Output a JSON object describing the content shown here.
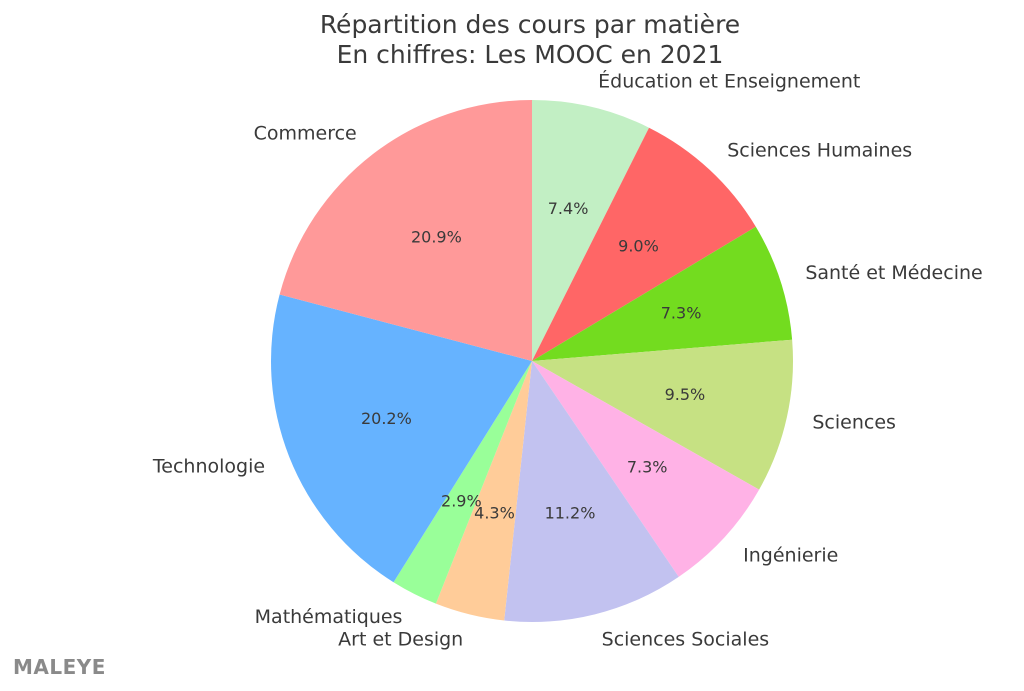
{
  "chart_data": {
    "type": "pie",
    "title": "Répartition des cours par matière",
    "subtitle": "En chiffres: Les MOOC en 2021",
    "start_angle_deg": 90,
    "direction": "clockwise",
    "slices": [
      {
        "label": "Éducation et Enseignement",
        "value": 7.4,
        "pct_label": "7.4%",
        "color": "#c2efc4"
      },
      {
        "label": "Sciences Humaines",
        "value": 9.0,
        "pct_label": "9.0%",
        "color": "#ff6666"
      },
      {
        "label": "Santé et Médecine",
        "value": 7.3,
        "pct_label": "7.3%",
        "color": "#73dc1f"
      },
      {
        "label": "Sciences",
        "value": 9.5,
        "pct_label": "9.5%",
        "color": "#c6e183"
      },
      {
        "label": "Ingénierie",
        "value": 7.3,
        "pct_label": "7.3%",
        "color": "#ffb2e6"
      },
      {
        "label": "Sciences Sociales",
        "value": 11.2,
        "pct_label": "11.2%",
        "color": "#c2c2f0"
      },
      {
        "label": "Art et Design",
        "value": 4.3,
        "pct_label": "4.3%",
        "color": "#ffcc99"
      },
      {
        "label": "Mathématiques",
        "value": 2.9,
        "pct_label": "2.9%",
        "color": "#99ff99"
      },
      {
        "label": "Technologie",
        "value": 20.2,
        "pct_label": "20.2%",
        "color": "#66b3ff"
      },
      {
        "label": "Commerce",
        "value": 20.9,
        "pct_label": "20.9%",
        "color": "#ff9999"
      }
    ]
  },
  "watermark": "MALEYE"
}
